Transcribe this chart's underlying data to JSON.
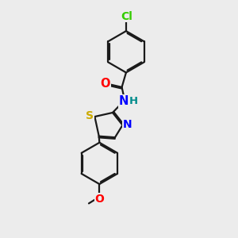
{
  "background_color": "#ececec",
  "bond_color": "#1a1a1a",
  "atom_colors": {
    "Cl": "#33cc00",
    "O": "#ff0000",
    "N": "#0000ff",
    "H": "#008b8b",
    "S": "#ccaa00"
  },
  "lw": 1.6,
  "dbo": 0.055,
  "fs": 9.5,
  "fig_size": 3.0,
  "dpi": 100
}
